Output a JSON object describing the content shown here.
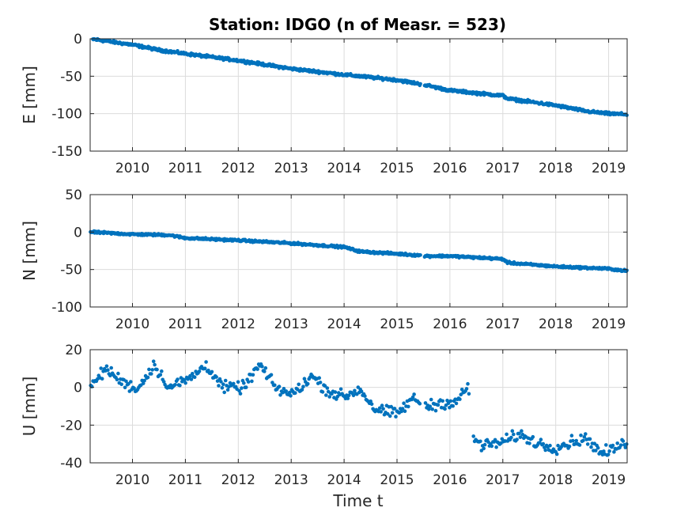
{
  "title": "Station: IDGO (n of Measr. = 523)",
  "xlabel": "Time t",
  "colors": {
    "marker": "#0072BD",
    "axes": "#262626",
    "grid": "#dcdcdc"
  },
  "chart_data": [
    {
      "type": "scatter",
      "ylabel": "E [mm]",
      "xlim": [
        2009.2,
        2019.35
      ],
      "ylim": [
        -150,
        0
      ],
      "yticks": [
        0,
        -50,
        -100,
        -150
      ],
      "xticks": [
        2010,
        2011,
        2012,
        2013,
        2014,
        2015,
        2016,
        2017,
        2018,
        2019
      ],
      "grid": true,
      "trend": [
        [
          2009.2,
          0
        ],
        [
          2010,
          -8
        ],
        [
          2010.5,
          -15
        ],
        [
          2011,
          -20
        ],
        [
          2012,
          -29
        ],
        [
          2013,
          -40
        ],
        [
          2014,
          -48
        ],
        [
          2015,
          -55
        ],
        [
          2015.4,
          -60
        ],
        [
          2015.55,
          -62
        ],
        [
          2016,
          -69
        ],
        [
          2017,
          -76
        ],
        [
          2017.1,
          -80
        ],
        [
          2018,
          -89
        ],
        [
          2018.6,
          -97
        ],
        [
          2019,
          -100
        ],
        [
          2019.35,
          -101
        ]
      ],
      "noise": 1.5,
      "series": [
        {
          "x": [
            2009.2,
            2009.6,
            2010.0,
            2010.5,
            2010.7,
            2011.0,
            2011.5,
            2012.0,
            2012.5,
            2013.0,
            2013.5,
            2014.0,
            2014.4,
            2015.0,
            2015.4,
            2015.55,
            2016.0,
            2016.5,
            2017.0,
            2017.2,
            2017.6,
            2018.0,
            2018.5,
            2019.0,
            2019.35
          ],
          "values": [
            0,
            -4,
            -8,
            -15,
            -13,
            -19,
            -24,
            -29,
            -34,
            -40,
            -43,
            -48,
            -51,
            -55,
            -59,
            -62,
            -69,
            -72,
            -75,
            -81,
            -84,
            -89,
            -94,
            -100,
            -101
          ]
        }
      ]
    },
    {
      "type": "scatter",
      "ylabel": "N [mm]",
      "xlim": [
        2009.2,
        2019.35
      ],
      "ylim": [
        -100,
        50
      ],
      "yticks": [
        50,
        0,
        -50,
        -100
      ],
      "xticks": [
        2010,
        2011,
        2012,
        2013,
        2014,
        2015,
        2016,
        2017,
        2018,
        2019
      ],
      "grid": true,
      "trend": [
        [
          2009.2,
          0
        ],
        [
          2010,
          -3
        ],
        [
          2010.7,
          -4
        ],
        [
          2011,
          -8
        ],
        [
          2012,
          -11
        ],
        [
          2013,
          -15
        ],
        [
          2014,
          -20
        ],
        [
          2014.3,
          -26
        ],
        [
          2015,
          -29
        ],
        [
          2015.4,
          -31
        ],
        [
          2015.55,
          -32
        ],
        [
          2016,
          -32
        ],
        [
          2017,
          -36
        ],
        [
          2017.1,
          -41
        ],
        [
          2018,
          -46
        ],
        [
          2019,
          -49
        ],
        [
          2019.35,
          -52
        ]
      ],
      "noise": 1.2,
      "series": [
        {
          "x": [
            2009.2,
            2009.6,
            2010.0,
            2010.5,
            2010.7,
            2011.0,
            2011.5,
            2012.0,
            2012.5,
            2013.0,
            2013.5,
            2014.0,
            2014.3,
            2015.0,
            2015.4,
            2015.55,
            2016.0,
            2016.5,
            2017.0,
            2017.2,
            2017.6,
            2018.0,
            2018.5,
            2019.0,
            2019.35
          ],
          "values": [
            0,
            -2,
            -3,
            -2,
            -5,
            -8,
            -10,
            -11,
            -12,
            -15,
            -17,
            -20,
            -26,
            -29,
            -30,
            -32,
            -32,
            -34,
            -36,
            -41,
            -43,
            -46,
            -48,
            -49,
            -52
          ]
        }
      ]
    },
    {
      "type": "scatter",
      "ylabel": "U [mm]",
      "xlim": [
        2009.2,
        2019.35
      ],
      "ylim": [
        -40,
        20
      ],
      "yticks": [
        20,
        0,
        -20,
        -40
      ],
      "xticks": [
        2010,
        2011,
        2012,
        2013,
        2014,
        2015,
        2016,
        2017,
        2018,
        2019
      ],
      "grid": true,
      "trend": [
        [
          2009.2,
          0
        ],
        [
          2009.5,
          10
        ],
        [
          2009.8,
          3
        ],
        [
          2010.1,
          -1
        ],
        [
          2010.4,
          12
        ],
        [
          2010.7,
          0
        ],
        [
          2011.1,
          5
        ],
        [
          2011.4,
          12
        ],
        [
          2011.7,
          0
        ],
        [
          2012.1,
          0
        ],
        [
          2012.4,
          12
        ],
        [
          2012.7,
          0
        ],
        [
          2013.0,
          -4
        ],
        [
          2013.4,
          6
        ],
        [
          2013.7,
          -2
        ],
        [
          2014.0,
          -5
        ],
        [
          2014.3,
          -1
        ],
        [
          2014.6,
          -12
        ],
        [
          2015.0,
          -14
        ],
        [
          2015.3,
          -6
        ],
        [
          2015.6,
          -10
        ],
        [
          2015.9,
          -8
        ],
        [
          2016.1,
          -8
        ],
        [
          2016.35,
          0
        ],
        [
          2016.45,
          -27
        ],
        [
          2016.6,
          -31
        ],
        [
          2017.0,
          -29
        ],
        [
          2017.3,
          -25
        ],
        [
          2017.7,
          -30
        ],
        [
          2018.0,
          -32
        ],
        [
          2018.3,
          -29
        ],
        [
          2018.6,
          -27
        ],
        [
          2018.85,
          -35
        ],
        [
          2019.0,
          -34
        ],
        [
          2019.35,
          -29
        ]
      ],
      "noise": 2.6,
      "series": [
        {
          "x": [
            2009.2,
            2009.5,
            2010.0,
            2010.5,
            2011.0,
            2011.5,
            2012.0,
            2012.5,
            2013.0,
            2013.5,
            2014.0,
            2014.5,
            2015.0,
            2015.5,
            2016.0,
            2016.35,
            2016.45,
            2017.0,
            2017.5,
            2018.0,
            2018.5,
            2019.0,
            2019.35
          ],
          "values": [
            0,
            11,
            0,
            13,
            4,
            11,
            0,
            13,
            -4,
            7,
            -5,
            -12,
            -14,
            -9,
            -8,
            1,
            -28,
            -29,
            -27,
            -32,
            -28,
            -35,
            -29
          ]
        }
      ]
    }
  ]
}
